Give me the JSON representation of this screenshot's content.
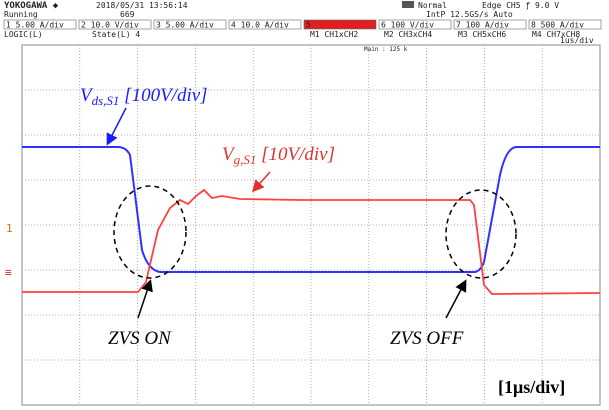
{
  "header": {
    "brand": "YOKOGAWA ◆",
    "datetime": "2018/05/31 13:56:14",
    "status": "Running",
    "count": "669",
    "trigger_mode": "Normal",
    "trigger": "Edge CH5 ƒ 9.0 V",
    "sampling": "IntP 12.5GS/s  Auto",
    "channels": [
      "1 5.00 A/div",
      "2 10.0 V/div",
      "3 5.00 A/div",
      "4 10.0 A/div",
      "5",
      "6 100 V/div",
      "7 100 A/div",
      "8 500 A/div"
    ],
    "channels_row2": [
      "LOGIC(L)",
      "State(L) 4",
      "M1 CH1xCH2",
      "M2 CH3xCH4",
      "M3 CH5xCH6",
      "M4 CH7xCH8"
    ],
    "timebase": "1us/div",
    "main": "Main : 125 k"
  },
  "screen": {
    "marker_1": "1",
    "marker_ref": "≡"
  },
  "annotations": {
    "vds": {
      "main": "V",
      "sub": "ds,S1",
      "rest": " [100V/div]"
    },
    "vg": {
      "main": "V",
      "sub": "g,S1",
      "rest": " [10V/div]"
    },
    "zvs_on": "ZVS ON",
    "zvs_off": "ZVS OFF",
    "time_scale": "[1μs/div]"
  }
}
